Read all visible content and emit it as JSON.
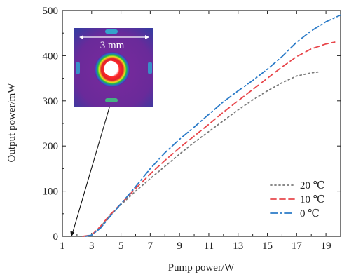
{
  "chart_data": {
    "type": "line",
    "xlabel": "Pump power/W",
    "ylabel": "Output power/mW",
    "xlim": [
      1,
      20
    ],
    "ylim": [
      0,
      500
    ],
    "xticks": [
      1,
      3,
      5,
      7,
      9,
      11,
      13,
      15,
      17,
      19
    ],
    "yticks": [
      0,
      100,
      200,
      300,
      400,
      500
    ],
    "grid": false,
    "legend_position": "bottom-right",
    "series": [
      {
        "name": "20 ℃",
        "color": "#7a7a7a",
        "dash": "dotted",
        "x": [
          2.4,
          3.0,
          3.6,
          4.2,
          5.0,
          6.0,
          7.0,
          8.0,
          9.0,
          10.0,
          11.0,
          12.0,
          13.0,
          14.0,
          15.0,
          16.0,
          17.0,
          18.0,
          18.5
        ],
        "y": [
          0,
          2,
          20,
          45,
          70,
          100,
          128,
          155,
          182,
          208,
          232,
          256,
          280,
          302,
          322,
          340,
          355,
          362,
          364
        ]
      },
      {
        "name": "10 ℃",
        "color": "#e8474c",
        "dash": "dashed",
        "x": [
          2.4,
          3.0,
          3.6,
          4.2,
          5.0,
          6.0,
          7.0,
          8.0,
          9.0,
          10.0,
          11.0,
          12.0,
          13.0,
          14.0,
          15.0,
          16.0,
          17.0,
          18.0,
          19.0,
          19.6
        ],
        "y": [
          0,
          3,
          22,
          46,
          72,
          106,
          138,
          168,
          196,
          222,
          248,
          275,
          300,
          325,
          350,
          375,
          398,
          415,
          426,
          430
        ]
      },
      {
        "name": "0 ℃",
        "color": "#2b7bc8",
        "dash": "dashdot",
        "x": [
          2.6,
          3.0,
          3.6,
          4.2,
          5.0,
          6.0,
          7.0,
          8.0,
          9.0,
          10.0,
          11.0,
          12.0,
          13.0,
          14.0,
          15.0,
          16.0,
          17.0,
          18.0,
          19.0,
          20.0
        ],
        "y": [
          0,
          3,
          18,
          42,
          72,
          110,
          150,
          185,
          215,
          242,
          270,
          298,
          322,
          345,
          370,
          398,
          430,
          455,
          475,
          490
        ]
      }
    ],
    "inset": {
      "label": "3 mm"
    }
  }
}
